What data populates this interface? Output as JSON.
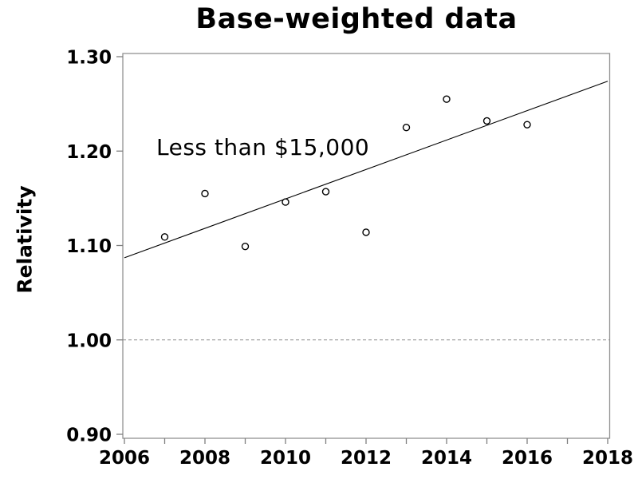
{
  "chart_data": {
    "type": "scatter",
    "title": "Base-weighted data",
    "ylabel": "Relativity",
    "xlabel": "",
    "annotation": "Less than $15,000",
    "x": [
      2007,
      2008,
      2009,
      2010,
      2011,
      2012,
      2013,
      2014,
      2015,
      2016
    ],
    "values": [
      1.109,
      1.155,
      1.099,
      1.146,
      1.157,
      1.114,
      1.225,
      1.255,
      1.232,
      1.228
    ],
    "trend_line": {
      "x": [
        2006,
        2018
      ],
      "y": [
        1.087,
        1.274
      ]
    },
    "reference_line_y": 1.0,
    "xlim": [
      2006,
      2018
    ],
    "ylim": [
      0.9,
      1.3
    ],
    "xtick_labels": [
      "2006",
      "2008",
      "2010",
      "2012",
      "2014",
      "2016",
      "2018"
    ],
    "xticks_minor_step": 1,
    "yticks": [
      0.9,
      1.0,
      1.1,
      1.2,
      1.3
    ],
    "ytick_decimals": 2,
    "grid": false,
    "legend": "none",
    "marker": "open-circle",
    "colors": {
      "points": "#000000",
      "trend_line": "#000000",
      "frame": "#919191",
      "ticks": "#7f7f7f",
      "reference_line": "#8f8f8f",
      "text": "#000000",
      "background": "#ffffff"
    }
  }
}
